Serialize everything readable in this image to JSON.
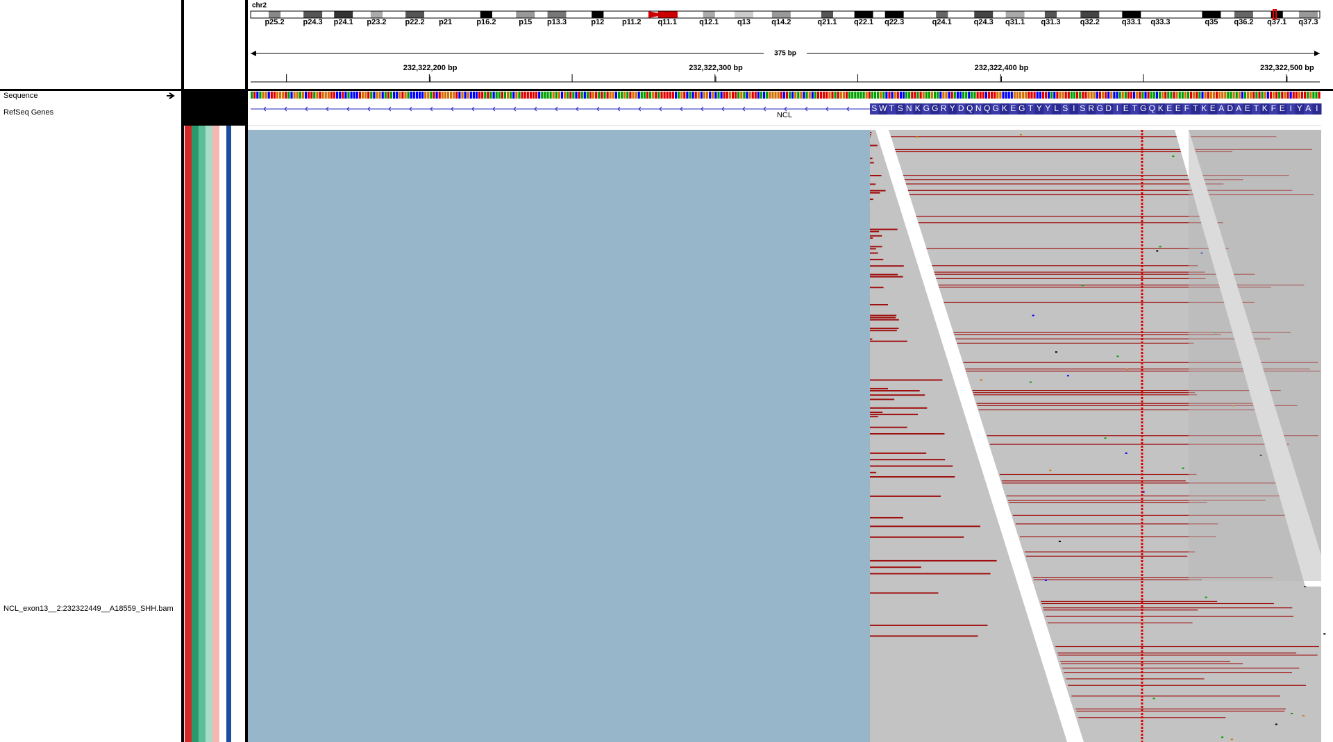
{
  "header": {
    "chromosome": "chr2",
    "bands": [
      "p25.2",
      "p24.3",
      "p24.1",
      "p23.2",
      "p22.2",
      "p21",
      "p16.2",
      "p15",
      "p13.3",
      "p12",
      "p11.2",
      "q11.1",
      "q12.1",
      "q13",
      "q14.2",
      "q21.1",
      "q22.1",
      "q22.3",
      "q24.1",
      "q24.3",
      "q31.1",
      "q31.3",
      "q32.2",
      "q33.1",
      "q33.3",
      "q35",
      "q36.2",
      "q37.1",
      "q37.3"
    ],
    "span": "375 bp",
    "ruler_labels": [
      "232,322,200 bp",
      "232,322,300 bp",
      "232,322,400 bp",
      "232,322,500 bp"
    ]
  },
  "tracks": {
    "sequence": "Sequence",
    "refseq": "RefSeq Genes",
    "alignment": "NCL_exon13__2:232322449__A18559_SHH.bam"
  },
  "gene": {
    "name": "NCL",
    "amino_acids": [
      "S",
      "W",
      "T",
      "S",
      "N",
      "K",
      "G",
      "G",
      "R",
      "Y",
      "D",
      "Q",
      "N",
      "Q",
      "G",
      "K",
      "E",
      "G",
      "T",
      "Y",
      "Y",
      "L",
      "S",
      "I",
      "S",
      "R",
      "G",
      "D",
      "I",
      "E",
      "T",
      "G",
      "Q",
      "K",
      "E",
      "E",
      "F",
      "T",
      "K",
      "E",
      "A",
      "D",
      "A",
      "E",
      "T",
      "K",
      "F",
      "E",
      "I",
      "Y",
      "A",
      "I"
    ]
  }
}
